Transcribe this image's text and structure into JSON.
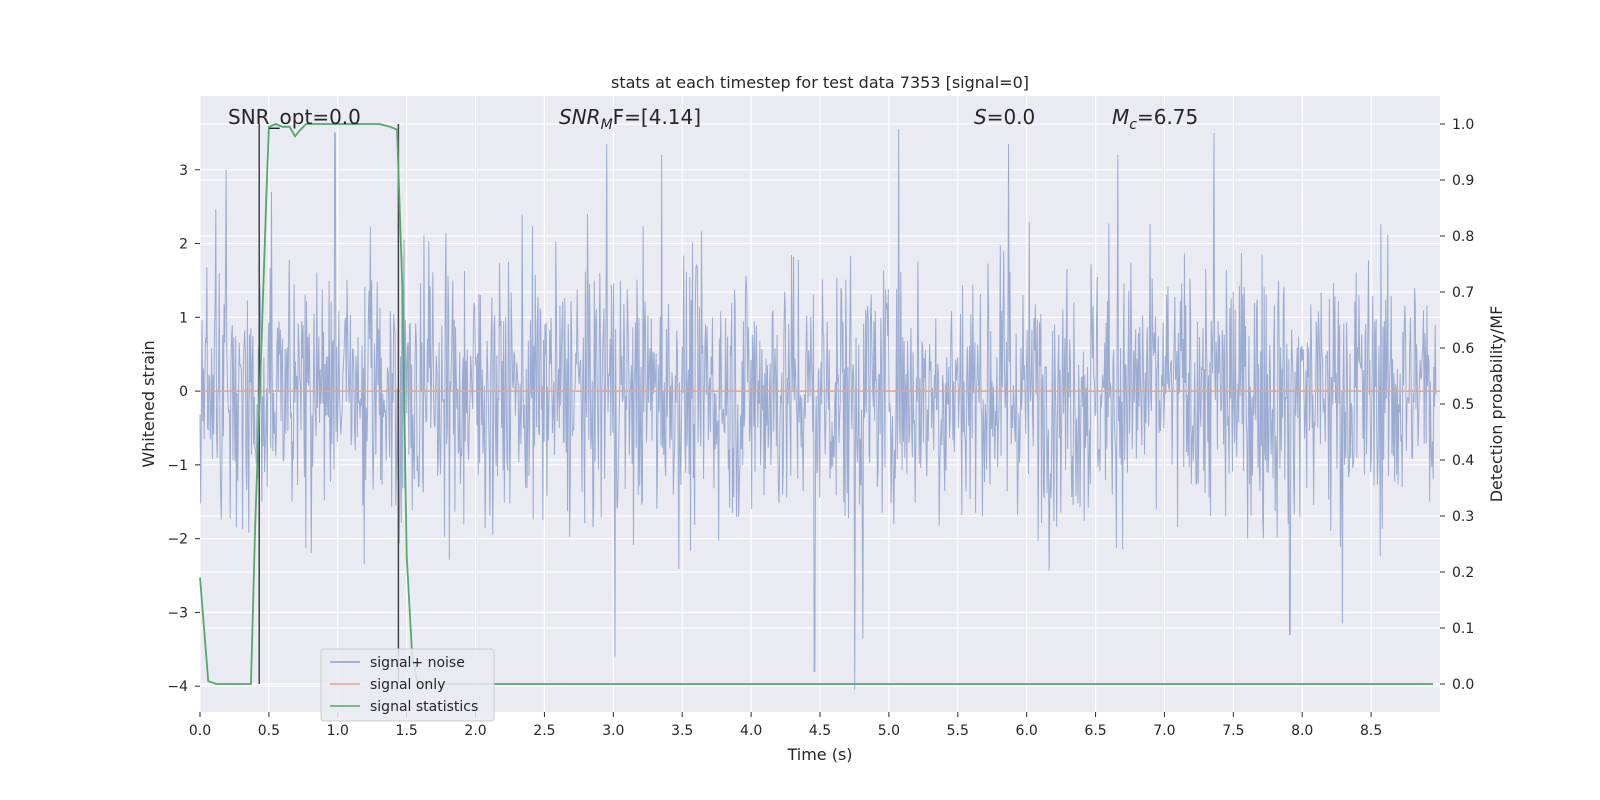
{
  "chart_data": {
    "type": "line",
    "title": "stats at each timestep for test data 7353 [signal=0]",
    "xlabel": "Time (s)",
    "ylabel": "Whitened strain",
    "ylabel_right": "Detection probability/MF",
    "xlim": [
      0.0,
      9.0
    ],
    "ylim": [
      -4.35,
      4.0
    ],
    "ylim_right": [
      -0.05,
      1.05
    ],
    "x_ticks": [
      0.0,
      0.5,
      1.0,
      1.5,
      2.0,
      2.5,
      3.0,
      3.5,
      4.0,
      4.5,
      5.0,
      5.5,
      6.0,
      6.5,
      7.0,
      7.5,
      8.0,
      8.5
    ],
    "x_tick_labels": [
      "0.0",
      "0.5",
      "1.0",
      "1.5",
      "2.0",
      "2.5",
      "3.0",
      "3.5",
      "4.0",
      "4.5",
      "5.0",
      "5.5",
      "6.0",
      "6.5",
      "7.0",
      "7.5",
      "8.0",
      "8.5"
    ],
    "y_ticks": [
      3,
      2,
      1,
      0,
      -1,
      -2,
      -3,
      -4
    ],
    "y_tick_labels": [
      "3",
      "2",
      "1",
      "0",
      "−1",
      "−2",
      "−3",
      "−4"
    ],
    "y_right_ticks": [
      1.0,
      0.9,
      0.8,
      0.7,
      0.6,
      0.5,
      0.4,
      0.3,
      0.2,
      0.1,
      0.0
    ],
    "y_right_tick_labels": [
      "1.0",
      "0.9",
      "0.8",
      "0.7",
      "0.6",
      "0.5",
      "0.4",
      "0.3",
      "0.2",
      "0.1",
      "0.0"
    ],
    "grid": true,
    "legend_position": "lower-left",
    "series": [
      {
        "name": "signal+ noise",
        "color": "#8da0cb",
        "description": "whitened noisy strain, fluctuating roughly between -4 and 3.6",
        "peaks": [
          {
            "x": 0.19,
            "y": 3.0
          },
          {
            "x": 0.52,
            "y": 2.7
          },
          {
            "x": 0.98,
            "y": 3.5
          },
          {
            "x": 2.95,
            "y": 3.35
          },
          {
            "x": 3.35,
            "y": 3.2
          },
          {
            "x": 5.07,
            "y": 3.55
          },
          {
            "x": 5.87,
            "y": 3.35
          },
          {
            "x": 7.36,
            "y": 3.5
          },
          {
            "x": 6.66,
            "y": 3.2
          },
          {
            "x": 3.01,
            "y": -3.6
          },
          {
            "x": 4.46,
            "y": -3.8
          },
          {
            "x": 4.75,
            "y": -4.05
          },
          {
            "x": 4.81,
            "y": -3.35
          },
          {
            "x": 8.29,
            "y": -3.15
          },
          {
            "x": 7.91,
            "y": -3.3
          }
        ]
      },
      {
        "name": "signal only",
        "color": "#e5a48a",
        "x": [
          0.0,
          9.0
        ],
        "y": [
          0.0,
          0.0
        ]
      },
      {
        "name": "signal statistics",
        "color": "#55a868",
        "axis": "right",
        "x": [
          0.0,
          0.06,
          0.12,
          0.18,
          0.25,
          0.31,
          0.37,
          0.4,
          0.44,
          0.48,
          0.5,
          0.55,
          0.6,
          0.65,
          0.69,
          0.73,
          0.77,
          0.8,
          0.9,
          1.0,
          1.1,
          1.2,
          1.3,
          1.38,
          1.43,
          1.47,
          1.5,
          1.54,
          1.58,
          1.65,
          2.0,
          3.0,
          4.0,
          5.0,
          6.0,
          7.0,
          8.0,
          8.95
        ],
        "y": [
          0.19,
          0.005,
          0.0,
          0.0,
          0.0,
          0.0,
          0.0,
          0.28,
          0.56,
          0.86,
          0.995,
          1.0,
          0.995,
          0.995,
          0.978,
          0.99,
          1.0,
          1.0,
          1.0,
          1.0,
          1.0,
          1.0,
          1.0,
          0.995,
          0.99,
          0.7,
          0.23,
          0.05,
          0.0,
          0.0,
          0.0,
          0.0,
          0.0,
          0.0,
          0.0,
          0.0,
          0.0,
          0.0
        ]
      }
    ],
    "vlines": [
      0.43,
      1.44
    ],
    "annotations": {
      "snr_opt": "SNR_opt=0.0",
      "snr_mf_base": "SNR",
      "snr_mf_sub": "M",
      "snr_mf_rest": "F=[4.14]",
      "s_sym": "S",
      "s_rest": "=0.0",
      "mc_sym": "M",
      "mc_sub": "c",
      "mc_rest": "=6.75"
    }
  }
}
